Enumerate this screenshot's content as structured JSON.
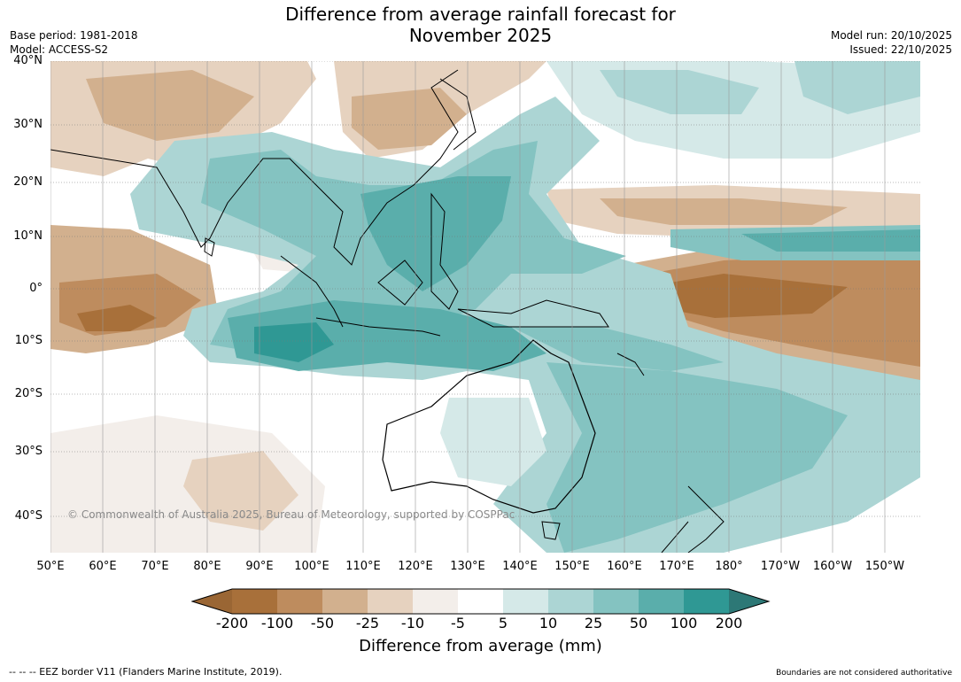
{
  "title": {
    "line1": "Difference from average rainfall forecast for",
    "line2": "November 2025"
  },
  "header": {
    "base_period": "Base period: 1981-2018",
    "model": "Model: ACCESS-S2",
    "model_run": "Model run: 20/10/2025",
    "issued": "Issued: 22/10/2025"
  },
  "map": {
    "latitude_labels": [
      "40°N",
      "30°N",
      "20°N",
      "10°N",
      "0°",
      "10°S",
      "20°S",
      "30°S",
      "40°S"
    ],
    "longitude_labels": [
      "50°E",
      "60°E",
      "70°E",
      "80°E",
      "90°E",
      "100°E",
      "110°E",
      "120°E",
      "130°E",
      "140°E",
      "150°E",
      "160°E",
      "170°E",
      "180°",
      "170°W",
      "160°W",
      "150°W"
    ],
    "lat_range": [
      -46,
      40
    ],
    "lon_range": [
      50,
      216
    ],
    "copyright": "© Commonwealth of Australia 2025, Bureau of Meteorology, supported by COSPPac"
  },
  "colorbar": {
    "title": "Difference from average (mm)",
    "tick_labels": [
      "-200",
      "-100",
      "-50",
      "-25",
      "-10",
      "-5",
      "5",
      "10",
      "25",
      "50",
      "100",
      "200"
    ],
    "colors": [
      "#9a6634",
      "#a8703a",
      "#be8c5e",
      "#d2b08e",
      "#e6d2bf",
      "#f3eeea",
      "#ffffff",
      "#d5e9e8",
      "#acd5d4",
      "#84c3c1",
      "#5aaeab",
      "#2f9894",
      "#2d7876"
    ]
  },
  "footer": {
    "eez": "--  --  -- EEZ border V11 (Flanders Marine Institute, 2019).",
    "boundaries": "Boundaries are not considered authoritative"
  }
}
